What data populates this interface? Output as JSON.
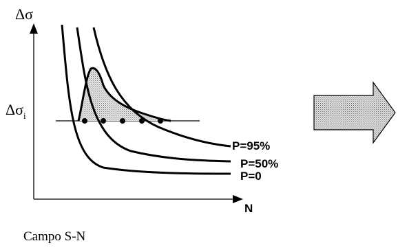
{
  "diagram": {
    "y_axis_label": "Δσ",
    "x_axis_label": "N",
    "threshold_label_main": "Δσ",
    "threshold_label_sub": "i",
    "curves": [
      {
        "label": "P=95%"
      },
      {
        "label": "P=50%"
      },
      {
        "label": "P=0"
      }
    ],
    "caption": "Campo S-N"
  }
}
